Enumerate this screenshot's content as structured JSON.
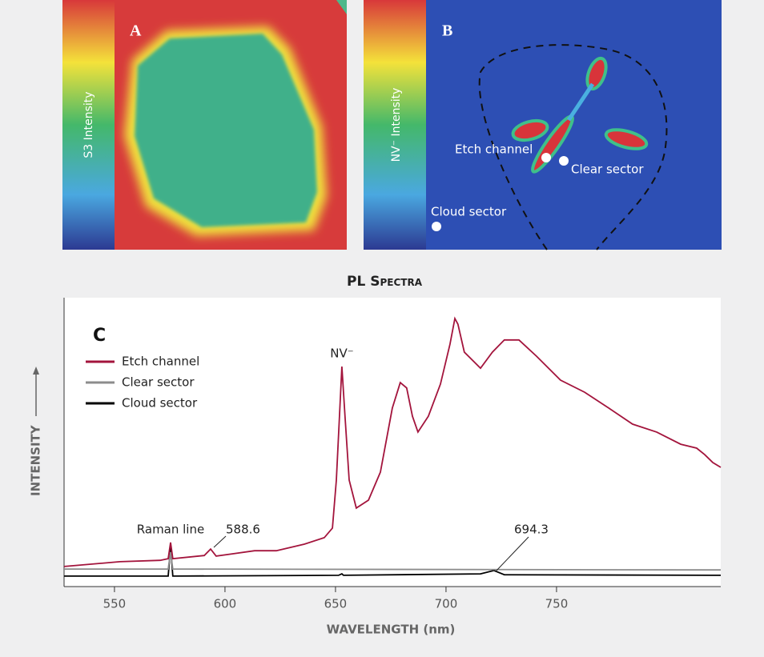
{
  "panels": {
    "a": {
      "label": "A",
      "colorbar_label": "S3 Intensity"
    },
    "b": {
      "label": "B",
      "colorbar_label": "NV⁻ Intensity",
      "annotations": [
        "Etch channel",
        "Clear sector",
        "Cloud sector"
      ]
    }
  },
  "chart_data": {
    "type": "line",
    "title": "PL Spectra",
    "panel_label": "C",
    "xlabel": "WAVELENGTH (nm)",
    "ylabel": "INTENSITY",
    "xlim": [
      527.2,
      824.3
    ],
    "ylim": [
      0,
      100
    ],
    "xticks": [
      550,
      600,
      650,
      700,
      750
    ],
    "legend": "upper left",
    "annotations": [
      "NV⁻",
      "Raman line",
      "588.6",
      "694.3"
    ],
    "series": [
      {
        "name": "Etch channel",
        "color": "#a3143c",
        "x": [
          527.2,
          552.5,
          570.7,
          574.3,
          575.4,
          576.4,
          590.6,
          593.5,
          596.0,
          603.3,
          613.4,
          623.2,
          635.9,
          644.9,
          648.6,
          650.4,
          651.8,
          652.9,
          654.3,
          656.2,
          659.4,
          664.9,
          670.3,
          675.7,
          679.3,
          682.2,
          684.8,
          687.3,
          692.0,
          697.5,
          701.8,
          704.0,
          705.4,
          708.3,
          715.6,
          721.0,
          726.4,
          733.0,
          740.9,
          751.8,
          762.7,
          773.6,
          784.4,
          795.3,
          806.2,
          813.4,
          817.0,
          820.7,
          824.3
        ],
        "values": [
          7.1,
          8.8,
          9.3,
          9.9,
          15.6,
          9.9,
          11.0,
          13.3,
          10.8,
          11.6,
          12.7,
          12.7,
          15.0,
          17.3,
          20.7,
          37.7,
          60.3,
          77.9,
          60.3,
          37.7,
          27.8,
          30.6,
          40.5,
          63.2,
          72.2,
          70.3,
          60.3,
          54.7,
          60.3,
          71.7,
          85.8,
          94.9,
          92.9,
          83.0,
          77.3,
          83.0,
          87.3,
          87.3,
          81.6,
          73.1,
          68.8,
          63.2,
          57.5,
          54.7,
          50.4,
          49.0,
          46.7,
          43.9,
          42.2
        ]
      },
      {
        "name": "Clear sector",
        "color": "#8c8c8c",
        "x": [
          527.2,
          574.3,
          575.4,
          576.4,
          824.3
        ],
        "values": [
          6.2,
          6.2,
          12.2,
          6.2,
          5.9
        ]
      },
      {
        "name": "Cloud sector",
        "color": "#000000",
        "x": [
          527.2,
          574.3,
          575.4,
          576.4,
          651.4,
          652.9,
          653.6,
          715.6,
          721.7,
          726.4,
          824.3
        ],
        "values": [
          3.7,
          3.7,
          14.2,
          3.7,
          4.0,
          4.5,
          4.0,
          4.5,
          5.7,
          4.2,
          4.0
        ]
      }
    ]
  }
}
